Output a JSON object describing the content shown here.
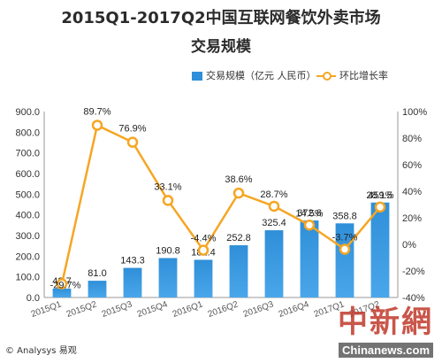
{
  "title_line1": "2015Q1-2017Q2中国互联网餐饮外卖市场",
  "title_line2": "交易规模",
  "footer": "© Analysys 易观",
  "watermark": {
    "main": "中新網",
    "sub": "Chinanews.com"
  },
  "colors": {
    "bar": "#2f8fd8",
    "line": "#f5a623"
  },
  "chart_data": {
    "type": "bar",
    "title": "2015Q1-2017Q2中国互联网餐饮外卖市场交易规模",
    "categories": [
      "2015Q1",
      "2015Q2",
      "2015Q3",
      "2015Q4",
      "2016Q1",
      "2016Q2",
      "2016Q3",
      "2016Q4",
      "2017Q1",
      "2017Q2"
    ],
    "series": [
      {
        "name": "交易规模（亿元 人民币）",
        "type": "bar",
        "axis": "left",
        "values": [
          42.7,
          81.0,
          143.3,
          190.8,
          182.4,
          252.8,
          325.4,
          372.6,
          358.8,
          459.5
        ],
        "labels": [
          "42.7",
          "81.0",
          "143.3",
          "190.8",
          "182.4",
          "252.8",
          "325.4",
          "372.6",
          "358.8",
          "459.5"
        ]
      },
      {
        "name": "环比增长率",
        "type": "line",
        "axis": "right",
        "values": [
          -29.7,
          89.7,
          76.9,
          33.1,
          -4.4,
          38.6,
          28.7,
          14.5,
          -3.7,
          28.1
        ],
        "labels": [
          "-29.7%",
          "89.7%",
          "76.9%",
          "33.1%",
          "-4.4%",
          "38.6%",
          "28.7%",
          "14.5%",
          "-3.7%",
          "28.1%"
        ]
      }
    ],
    "ylim_left": [
      0,
      900
    ],
    "yticks_left": [
      "0.0",
      "100.0",
      "200.0",
      "300.0",
      "400.0",
      "500.0",
      "600.0",
      "700.0",
      "800.0",
      "900.0"
    ],
    "ylim_right": [
      -40,
      100
    ],
    "yticks_right": [
      "-40%",
      "-20%",
      "0%",
      "20%",
      "40%",
      "60%",
      "80%",
      "100%"
    ],
    "legend_position": "top-right",
    "grid": false
  }
}
